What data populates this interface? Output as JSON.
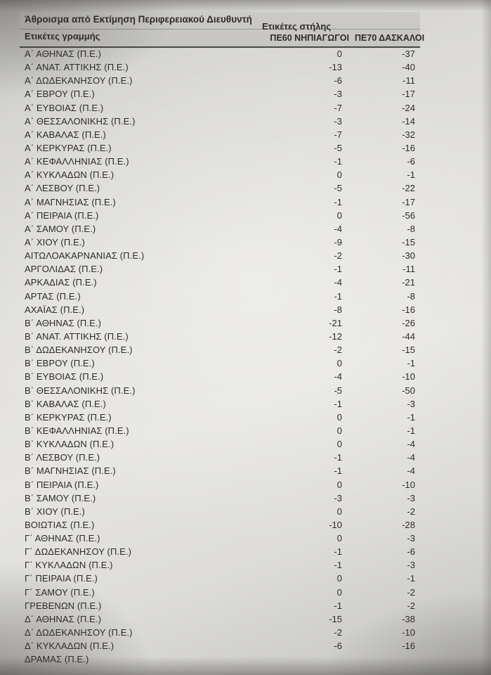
{
  "header": {
    "sum_title": "Άθροισμα από Εκτίμηση Περιφερειακού Διευθυντή",
    "column_labels_title": "Ετικέτες στήλης",
    "row_labels_title": "Ετικέτες γραμμής",
    "col_pe60": "ΠΕ60 ΝΗΠΙΑΓΩΓΟΙ",
    "col_pe70": "ΠΕ70 ΔΑΣΚΑΛΟΙ"
  },
  "colors": {
    "paper": "#e3e2df",
    "header_band": "#c8c7c4",
    "ink": "#2e2c29",
    "header_rule": "#4a4843"
  },
  "rows": [
    {
      "label": "Α΄ ΑΘΗΝΑΣ (Π.Ε.)",
      "pe60": "0",
      "pe70": "-37"
    },
    {
      "label": "Α΄ ΑΝΑΤ. ΑΤΤΙΚΗΣ (Π.Ε.)",
      "pe60": "-13",
      "pe70": "-40"
    },
    {
      "label": "Α΄ ΔΩΔΕΚΑΝΗΣΟΥ (Π.Ε.)",
      "pe60": "-6",
      "pe70": "-11"
    },
    {
      "label": "Α΄ ΕΒΡΟΥ (Π.Ε.)",
      "pe60": "-3",
      "pe70": "-17"
    },
    {
      "label": "Α΄ ΕΥΒΟΙΑΣ (Π.Ε.)",
      "pe60": "-7",
      "pe70": "-24"
    },
    {
      "label": "Α΄ ΘΕΣΣΑΛΟΝΙΚΗΣ (Π.Ε.)",
      "pe60": "-3",
      "pe70": "-14"
    },
    {
      "label": "Α΄ ΚΑΒΑΛΑΣ (Π.Ε.)",
      "pe60": "-7",
      "pe70": "-32"
    },
    {
      "label": "Α΄ ΚΕΡΚΥΡΑΣ (Π.Ε.)",
      "pe60": "-5",
      "pe70": "-16"
    },
    {
      "label": "Α΄ ΚΕΦΑΛΛΗΝΙΑΣ (Π.Ε.)",
      "pe60": "-1",
      "pe70": "-6"
    },
    {
      "label": "Α΄ ΚΥΚΛΑΔΩΝ (Π.Ε.)",
      "pe60": "0",
      "pe70": "-1"
    },
    {
      "label": "Α΄ ΛΕΣΒΟΥ (Π.Ε.)",
      "pe60": "-5",
      "pe70": "-22"
    },
    {
      "label": "Α΄ ΜΑΓΝΗΣΙΑΣ (Π.Ε.)",
      "pe60": "-1",
      "pe70": "-17"
    },
    {
      "label": "Α΄ ΠΕΙΡΑΙΑ (Π.Ε.)",
      "pe60": "0",
      "pe70": "-56"
    },
    {
      "label": "Α΄ ΣΑΜΟΥ (Π.Ε.)",
      "pe60": "-4",
      "pe70": "-8"
    },
    {
      "label": "Α΄ ΧΙΟΥ (Π.Ε.)",
      "pe60": "-9",
      "pe70": "-15"
    },
    {
      "label": "ΑΙΤΩΛΟΑΚΑΡΝΑΝΙΑΣ (Π.Ε.)",
      "pe60": "-2",
      "pe70": "-30"
    },
    {
      "label": "ΑΡΓΟΛΙΔΑΣ (Π.Ε.)",
      "pe60": "-1",
      "pe70": "-11"
    },
    {
      "label": "ΑΡΚΑΔΙΑΣ (Π.Ε.)",
      "pe60": "-4",
      "pe70": "-21"
    },
    {
      "label": "ΑΡΤΑΣ (Π.Ε.)",
      "pe60": "-1",
      "pe70": "-8"
    },
    {
      "label": "ΑΧΑΪΑΣ (Π.Ε.)",
      "pe60": "-8",
      "pe70": "-16"
    },
    {
      "label": "Β΄ ΑΘΗΝΑΣ (Π.Ε.)",
      "pe60": "-21",
      "pe70": "-26"
    },
    {
      "label": "Β΄ ΑΝΑΤ. ΑΤΤΙΚΗΣ (Π.Ε.)",
      "pe60": "-12",
      "pe70": "-44"
    },
    {
      "label": "Β΄ ΔΩΔΕΚΑΝΗΣΟΥ (Π.Ε.)",
      "pe60": "-2",
      "pe70": "-15"
    },
    {
      "label": "Β΄ ΕΒΡΟΥ (Π.Ε.)",
      "pe60": "0",
      "pe70": "-1"
    },
    {
      "label": "Β΄ ΕΥΒΟΙΑΣ (Π.Ε.)",
      "pe60": "-4",
      "pe70": "-10"
    },
    {
      "label": "Β΄ ΘΕΣΣΑΛΟΝΙΚΗΣ (Π.Ε.)",
      "pe60": "-5",
      "pe70": "-50"
    },
    {
      "label": "Β΄ ΚΑΒΑΛΑΣ (Π.Ε.)",
      "pe60": "-1",
      "pe70": "-3"
    },
    {
      "label": "Β΄ ΚΕΡΚΥΡΑΣ (Π.Ε.)",
      "pe60": "0",
      "pe70": "-1"
    },
    {
      "label": "Β΄ ΚΕΦΑΛΛΗΝΙΑΣ (Π.Ε.)",
      "pe60": "0",
      "pe70": "-1"
    },
    {
      "label": "Β΄ ΚΥΚΛΑΔΩΝ (Π.Ε.)",
      "pe60": "0",
      "pe70": "-4"
    },
    {
      "label": "Β΄ ΛΕΣΒΟΥ (Π.Ε.)",
      "pe60": "-1",
      "pe70": "-4"
    },
    {
      "label": "Β΄ ΜΑΓΝΗΣΙΑΣ (Π.Ε.)",
      "pe60": "-1",
      "pe70": "-4"
    },
    {
      "label": "Β΄ ΠΕΙΡΑΙΑ (Π.Ε.)",
      "pe60": "0",
      "pe70": "-10"
    },
    {
      "label": "Β΄ ΣΑΜΟΥ (Π.Ε.)",
      "pe60": "-3",
      "pe70": "-3"
    },
    {
      "label": "Β΄ ΧΙΟΥ (Π.Ε.)",
      "pe60": "0",
      "pe70": "-2"
    },
    {
      "label": "ΒΟΙΩΤΙΑΣ (Π.Ε.)",
      "pe60": "-10",
      "pe70": "-28"
    },
    {
      "label": "Γ΄ ΑΘΗΝΑΣ (Π.Ε.)",
      "pe60": "0",
      "pe70": "-3"
    },
    {
      "label": "Γ΄ ΔΩΔΕΚΑΝΗΣΟΥ (Π.Ε.)",
      "pe60": "-1",
      "pe70": "-6"
    },
    {
      "label": "Γ΄ ΚΥΚΛΑΔΩΝ (Π.Ε.)",
      "pe60": "-1",
      "pe70": "-3"
    },
    {
      "label": "Γ΄ ΠΕΙΡΑΙΑ (Π.Ε.)",
      "pe60": "0",
      "pe70": "-1"
    },
    {
      "label": "Γ΄ ΣΑΜΟΥ (Π.Ε.)",
      "pe60": "0",
      "pe70": "-2"
    },
    {
      "label": "ΓΡΕΒΕΝΩΝ (Π.Ε.)",
      "pe60": "-1",
      "pe70": "-2"
    },
    {
      "label": "Δ΄ ΑΘΗΝΑΣ (Π.Ε.)",
      "pe60": "-15",
      "pe70": "-38"
    },
    {
      "label": "Δ΄ ΔΩΔΕΚΑΝΗΣΟΥ (Π.Ε.)",
      "pe60": "-2",
      "pe70": "-10"
    },
    {
      "label": "Δ΄ ΚΥΚΛΑΔΩΝ (Π.Ε.)",
      "pe60": "-6",
      "pe70": "-16"
    },
    {
      "label": "ΔΡΑΜΑΣ (Π.Ε.)",
      "pe60": "",
      "pe70": ""
    }
  ],
  "chart_data": {
    "type": "table",
    "title": "Άθροισμα από Εκτίμηση Περιφερειακού Διευθυντή",
    "columns": [
      "Ετικέτες γραμμής",
      "ΠΕ60 ΝΗΠΙΑΓΩΓΟΙ",
      "ΠΕ70 ΔΑΣΚΑΛΟΙ"
    ],
    "categories": [
      "Α΄ ΑΘΗΝΑΣ (Π.Ε.)",
      "Α΄ ΑΝΑΤ. ΑΤΤΙΚΗΣ (Π.Ε.)",
      "Α΄ ΔΩΔΕΚΑΝΗΣΟΥ (Π.Ε.)",
      "Α΄ ΕΒΡΟΥ (Π.Ε.)",
      "Α΄ ΕΥΒΟΙΑΣ (Π.Ε.)",
      "Α΄ ΘΕΣΣΑΛΟΝΙΚΗΣ (Π.Ε.)",
      "Α΄ ΚΑΒΑΛΑΣ (Π.Ε.)",
      "Α΄ ΚΕΡΚΥΡΑΣ (Π.Ε.)",
      "Α΄ ΚΕΦΑΛΛΗΝΙΑΣ (Π.Ε.)",
      "Α΄ ΚΥΚΛΑΔΩΝ (Π.Ε.)",
      "Α΄ ΛΕΣΒΟΥ (Π.Ε.)",
      "Α΄ ΜΑΓΝΗΣΙΑΣ (Π.Ε.)",
      "Α΄ ΠΕΙΡΑΙΑ (Π.Ε.)",
      "Α΄ ΣΑΜΟΥ (Π.Ε.)",
      "Α΄ ΧΙΟΥ (Π.Ε.)",
      "ΑΙΤΩΛΟΑΚΑΡΝΑΝΙΑΣ (Π.Ε.)",
      "ΑΡΓΟΛΙΔΑΣ (Π.Ε.)",
      "ΑΡΚΑΔΙΑΣ (Π.Ε.)",
      "ΑΡΤΑΣ (Π.Ε.)",
      "ΑΧΑΪΑΣ (Π.Ε.)",
      "Β΄ ΑΘΗΝΑΣ (Π.Ε.)",
      "Β΄ ΑΝΑΤ. ΑΤΤΙΚΗΣ (Π.Ε.)",
      "Β΄ ΔΩΔΕΚΑΝΗΣΟΥ (Π.Ε.)",
      "Β΄ ΕΒΡΟΥ (Π.Ε.)",
      "Β΄ ΕΥΒΟΙΑΣ (Π.Ε.)",
      "Β΄ ΘΕΣΣΑΛΟΝΙΚΗΣ (Π.Ε.)",
      "Β΄ ΚΑΒΑΛΑΣ (Π.Ε.)",
      "Β΄ ΚΕΡΚΥΡΑΣ (Π.Ε.)",
      "Β΄ ΚΕΦΑΛΛΗΝΙΑΣ (Π.Ε.)",
      "Β΄ ΚΥΚΛΑΔΩΝ (Π.Ε.)",
      "Β΄ ΛΕΣΒΟΥ (Π.Ε.)",
      "Β΄ ΜΑΓΝΗΣΙΑΣ (Π.Ε.)",
      "Β΄ ΠΕΙΡΑΙΑ (Π.Ε.)",
      "Β΄ ΣΑΜΟΥ (Π.Ε.)",
      "Β΄ ΧΙΟΥ (Π.Ε.)",
      "ΒΟΙΩΤΙΑΣ (Π.Ε.)",
      "Γ΄ ΑΘΗΝΑΣ (Π.Ε.)",
      "Γ΄ ΔΩΔΕΚΑΝΗΣΟΥ (Π.Ε.)",
      "Γ΄ ΚΥΚΛΑΔΩΝ (Π.Ε.)",
      "Γ΄ ΠΕΙΡΑΙΑ (Π.Ε.)",
      "Γ΄ ΣΑΜΟΥ (Π.Ε.)",
      "ΓΡΕΒΕΝΩΝ (Π.Ε.)",
      "Δ΄ ΑΘΗΝΑΣ (Π.Ε.)",
      "Δ΄ ΔΩΔΕΚΑΝΗΣΟΥ (Π.Ε.)",
      "Δ΄ ΚΥΚΛΑΔΩΝ (Π.Ε.)",
      "ΔΡΑΜΑΣ (Π.Ε.)"
    ],
    "series": [
      {
        "name": "ΠΕ60 ΝΗΠΙΑΓΩΓΟΙ",
        "values": [
          0,
          -13,
          -6,
          -3,
          -7,
          -3,
          -7,
          -5,
          -1,
          0,
          -5,
          -1,
          0,
          -4,
          -9,
          -2,
          -1,
          -4,
          -1,
          -8,
          -21,
          -12,
          -2,
          0,
          -4,
          -5,
          -1,
          0,
          0,
          0,
          -1,
          -1,
          0,
          -3,
          0,
          -10,
          0,
          -1,
          -1,
          0,
          0,
          -1,
          -15,
          -2,
          -6,
          null
        ]
      },
      {
        "name": "ΠΕ70 ΔΑΣΚΑΛΟΙ",
        "values": [
          -37,
          -40,
          -11,
          -17,
          -24,
          -14,
          -32,
          -16,
          -6,
          -1,
          -22,
          -17,
          -56,
          -8,
          -15,
          -30,
          -11,
          -21,
          -8,
          -16,
          -26,
          -44,
          -15,
          -1,
          -10,
          -50,
          -3,
          -1,
          -1,
          -4,
          -4,
          -4,
          -10,
          -3,
          -2,
          -28,
          -3,
          -6,
          -3,
          -1,
          -2,
          -2,
          -38,
          -10,
          -16,
          null
        ]
      }
    ],
    "legend_position": "none",
    "grid": false
  }
}
